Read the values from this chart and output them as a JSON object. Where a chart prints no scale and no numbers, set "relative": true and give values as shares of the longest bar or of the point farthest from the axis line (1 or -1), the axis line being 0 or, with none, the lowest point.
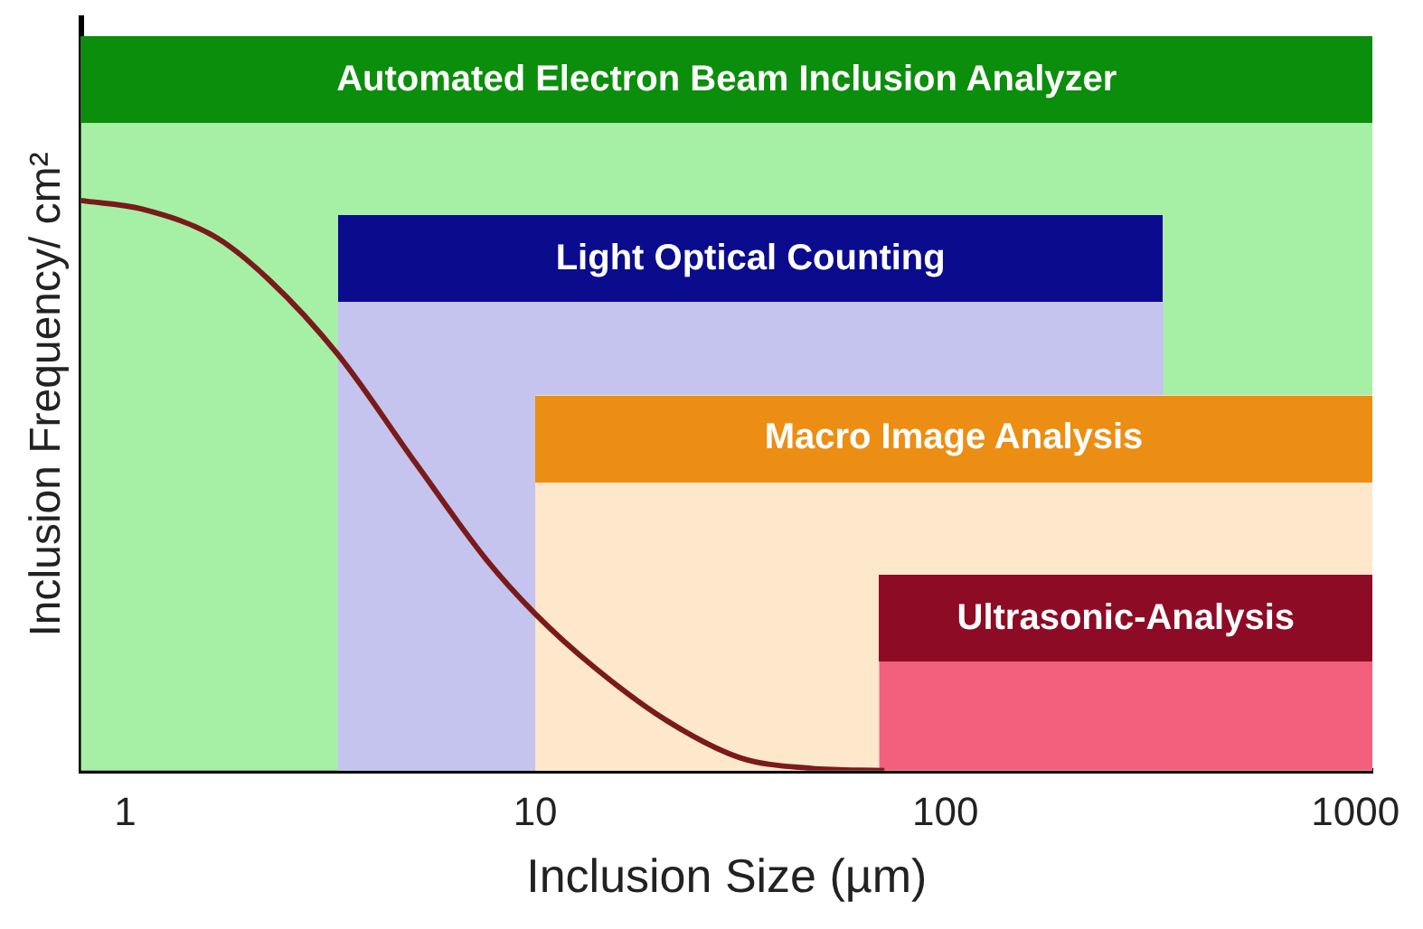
{
  "chart_data": {
    "type": "line",
    "xlabel": "Inclusion Size (µm)",
    "ylabel": "Inclusion Frequency/ cm²",
    "relative": true,
    "log": "x",
    "tick_labels": "x",
    "grid": false,
    "legend": false,
    "xlim": [
      0.78,
      1100
    ],
    "xticks": [
      1,
      10,
      100,
      1000
    ],
    "series": [
      {
        "color": "#7a1a1a",
        "x": [
          0.78,
          1.1,
          1.66,
          2.25,
          3.3,
          5.1,
          7.6,
          10,
          14,
          21,
          31.5,
          47,
          71
        ],
        "values": [
          1,
          0.985,
          0.936,
          0.86,
          0.73,
          0.54,
          0.37,
          0.275,
          0.18,
          0.087,
          0.023,
          0.004,
          0
        ]
      }
    ],
    "bands": [
      {
        "axis": "x",
        "from": 0.78,
        "to": 1100,
        "label": "Automated Electron Beam Inclusion Analyzer",
        "color": "#a6f0a6"
      },
      {
        "axis": "x",
        "from": 3.3,
        "to": 340,
        "label": "Light Optical Counting",
        "color": "#c4c4ee"
      },
      {
        "axis": "x",
        "from": 10,
        "to": 1100,
        "label": "Macro Image Analysis",
        "color": "#fde8cc"
      },
      {
        "axis": "x",
        "from": 69,
        "to": 1100,
        "label": "Ultrasonic-Analysis",
        "color": "#f2607e"
      }
    ]
  }
}
